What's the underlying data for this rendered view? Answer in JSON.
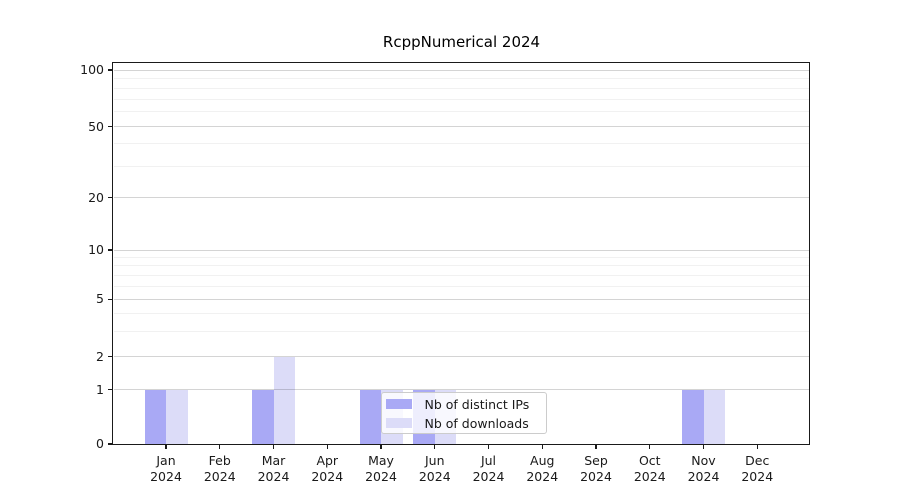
{
  "title": "RcppNumerical 2024",
  "chart_data": {
    "type": "bar",
    "title": "RcppNumerical 2024",
    "categories": [
      "Jan 2024",
      "Feb 2024",
      "Mar 2024",
      "Apr 2024",
      "May 2024",
      "Jun 2024",
      "Jul 2024",
      "Aug 2024",
      "Sep 2024",
      "Oct 2024",
      "Nov 2024",
      "Dec 2024"
    ],
    "series": [
      {
        "name": "Nb of distinct IPs",
        "color": "#a9a9f5",
        "values": [
          1,
          0,
          1,
          0,
          1,
          1,
          0,
          0,
          0,
          0,
          1,
          0
        ]
      },
      {
        "name": "Nb of downloads",
        "color": "#dcdcf8",
        "values": [
          1,
          0,
          2,
          0,
          1,
          1,
          0,
          0,
          0,
          0,
          1,
          0
        ]
      }
    ],
    "xlabel": "",
    "ylabel": "",
    "y_axis": {
      "scale": "log-like",
      "major_ticks": [
        0,
        1,
        2,
        5,
        10,
        20,
        50,
        100
      ],
      "minor_gridlines": [
        3,
        4,
        6,
        7,
        8,
        9,
        30,
        40,
        60,
        70,
        80,
        90
      ],
      "ylim_top_value": 140
    },
    "grid": "horizontal major and minor gridlines",
    "legend": {
      "position": "inside plot, lower center-left",
      "entries": [
        "Nb of distinct IPs",
        "Nb of downloads"
      ]
    }
  },
  "colors": {
    "bar_distinct_ips": "#a9a9f5",
    "bar_downloads": "#dcdcf8",
    "frame": "#1a1a1a",
    "text": "#1a1a1a",
    "legend_border": "#cccccc",
    "legend_bg": "rgba(255,255,255,0.8)"
  }
}
